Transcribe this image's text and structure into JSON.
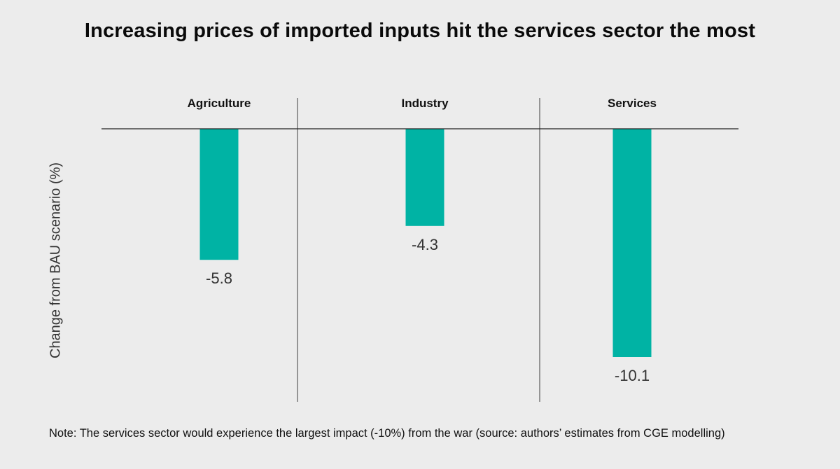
{
  "chart_data": {
    "type": "bar",
    "title": "Increasing prices of imported inputs hit the services sector the most",
    "ylabel": "Change from BAU scenario (%)",
    "categories": [
      "Agriculture",
      "Industry",
      "Services"
    ],
    "values": [
      -5.8,
      -4.3,
      -10.1
    ],
    "value_labels": [
      "-5.8",
      "-4.3",
      "-10.1"
    ],
    "ylim": [
      -10.1,
      0
    ],
    "grid": false,
    "legend": "none",
    "colors": {
      "bar": "#00b3a4",
      "axis": "#222222",
      "text": "#333333"
    }
  },
  "note": "Note: The services sector would experience the largest impact (-10%) from the war (source: authors’ estimates from CGE modelling)"
}
